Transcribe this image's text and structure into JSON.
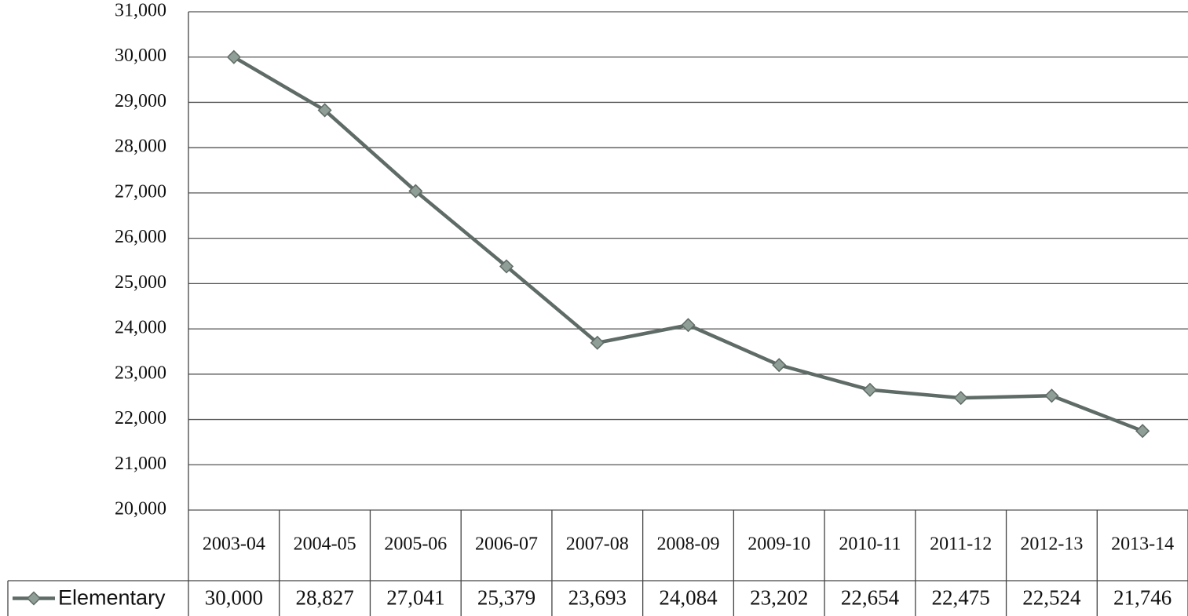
{
  "chart_data": {
    "type": "line",
    "categories": [
      "2003-04",
      "2004-05",
      "2005-06",
      "2006-07",
      "2007-08",
      "2008-09",
      "2009-10",
      "2010-11",
      "2011-12",
      "2012-13",
      "2013-14"
    ],
    "series": [
      {
        "name": "Elementary",
        "color": "#5f6b66",
        "marker_color": "#8f9e96",
        "values": [
          30000,
          28827,
          27041,
          25379,
          23693,
          24084,
          23202,
          22654,
          22475,
          22524,
          21746
        ],
        "value_labels": [
          "30,000",
          "28,827",
          "27,041",
          "25,379",
          "23,693",
          "24,084",
          "23,202",
          "22,654",
          "22,475",
          "22,524",
          "21,746"
        ]
      }
    ],
    "ylim": [
      20000,
      31000
    ],
    "yticks": [
      {
        "value": 20000,
        "label": "20,000"
      },
      {
        "value": 21000,
        "label": "21,000"
      },
      {
        "value": 22000,
        "label": "22,000"
      },
      {
        "value": 23000,
        "label": "23,000"
      },
      {
        "value": 24000,
        "label": "24,000"
      },
      {
        "value": 25000,
        "label": "25,000"
      },
      {
        "value": 26000,
        "label": "26,000"
      },
      {
        "value": 27000,
        "label": "27,000"
      },
      {
        "value": 28000,
        "label": "28,000"
      },
      {
        "value": 29000,
        "label": "29,000"
      },
      {
        "value": 30000,
        "label": "30,000"
      },
      {
        "value": 31000,
        "label": "31,000"
      }
    ],
    "grid": true
  }
}
